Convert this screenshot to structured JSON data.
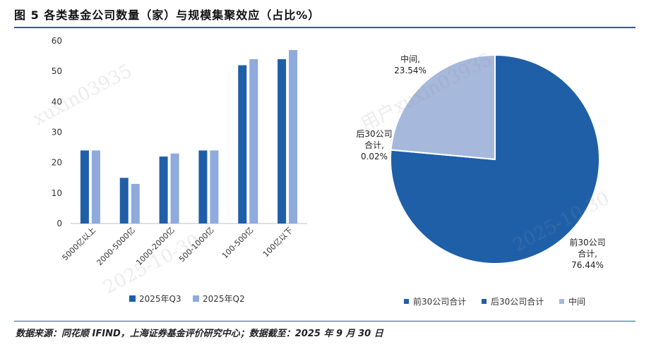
{
  "title": "图 5  各类基金公司数量（家）与规模集聚效应（占比%）",
  "footer": "数据来源：同花顺 IFIND，上海证券基金评价研究中心；数据截至：2025 年 9 月 30 日",
  "watermark": [
    "xuxin03935",
    "2025-10-30",
    "用户xuxin03935",
    "2025-10-30"
  ],
  "colors": {
    "q3": "#1f5fa8",
    "q2": "#8faadc",
    "mid": "#a6b8dc",
    "rule": "#1f5fa8"
  },
  "chart_data": [
    {
      "type": "bar",
      "categories": [
        "5000亿以上",
        "2000-5000亿",
        "1000-2000亿",
        "500-1000亿",
        "100-500亿",
        "100亿以下"
      ],
      "series": [
        {
          "name": "2025年Q3",
          "values": [
            24,
            15,
            22,
            24,
            52,
            54
          ]
        },
        {
          "name": "2025年Q2",
          "values": [
            24,
            13,
            23,
            24,
            54,
            57
          ]
        }
      ],
      "ylim": [
        0,
        60
      ],
      "yticks": [
        0,
        10,
        20,
        30,
        40,
        50,
        60
      ],
      "legend_position": "bottom"
    },
    {
      "type": "pie",
      "labels": [
        "前30公司合计",
        "后30公司合计",
        "中间"
      ],
      "values": [
        76.44,
        0.02,
        23.54
      ],
      "value_labels": [
        "76.44%",
        "0.02%",
        "23.54%"
      ],
      "legend_position": "bottom"
    }
  ]
}
